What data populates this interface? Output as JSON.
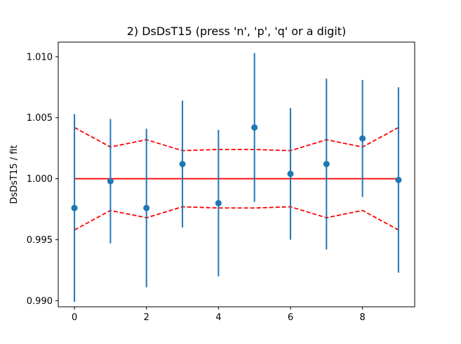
{
  "chart_data": {
    "type": "scatter",
    "title": "2) DsDsT15   (press 'n', 'p', 'q' or a digit)",
    "xlabel": "",
    "ylabel": "DsDsT15 / fit",
    "xlim": [
      -0.45,
      9.45
    ],
    "ylim": [
      0.9895,
      1.0112
    ],
    "x_ticks": [
      0,
      2,
      4,
      6,
      8
    ],
    "x_tick_labels": [
      "0",
      "2",
      "4",
      "6",
      "8"
    ],
    "y_ticks": [
      0.99,
      0.995,
      1.0,
      1.005,
      1.01
    ],
    "y_tick_labels": [
      "0.990",
      "0.995",
      "1.000",
      "1.005",
      "1.010"
    ],
    "grid": false,
    "legend": "none",
    "series": [
      {
        "kind": "errorbar",
        "color": "#1f77b4",
        "x": [
          0,
          1,
          2,
          3,
          4,
          5,
          6,
          7,
          8,
          9
        ],
        "y": [
          0.9976,
          0.9998,
          0.9976,
          1.0012,
          0.998,
          1.0042,
          1.0004,
          1.0012,
          1.0033,
          0.9999
        ],
        "err": [
          0.0077,
          0.0051,
          0.0065,
          0.0052,
          0.006,
          0.0061,
          0.0054,
          0.007,
          0.0048,
          0.0076
        ]
      },
      {
        "kind": "line",
        "style": "solid",
        "color": "#ff0000",
        "x": [
          0,
          9
        ],
        "y": [
          1.0,
          1.0
        ]
      },
      {
        "kind": "line",
        "style": "dashed",
        "color": "#ff0000",
        "x": [
          0,
          1,
          2,
          3,
          4,
          5,
          6,
          7,
          8,
          9
        ],
        "y": [
          1.0042,
          1.0026,
          1.0032,
          1.0023,
          1.0024,
          1.0024,
          1.0023,
          1.0032,
          1.0026,
          1.0042
        ]
      },
      {
        "kind": "line",
        "style": "dashed",
        "color": "#ff0000",
        "x": [
          0,
          1,
          2,
          3,
          4,
          5,
          6,
          7,
          8,
          9
        ],
        "y": [
          0.9958,
          0.9974,
          0.9968,
          0.9977,
          0.9976,
          0.9976,
          0.9977,
          0.9968,
          0.9974,
          0.9958
        ]
      }
    ]
  }
}
